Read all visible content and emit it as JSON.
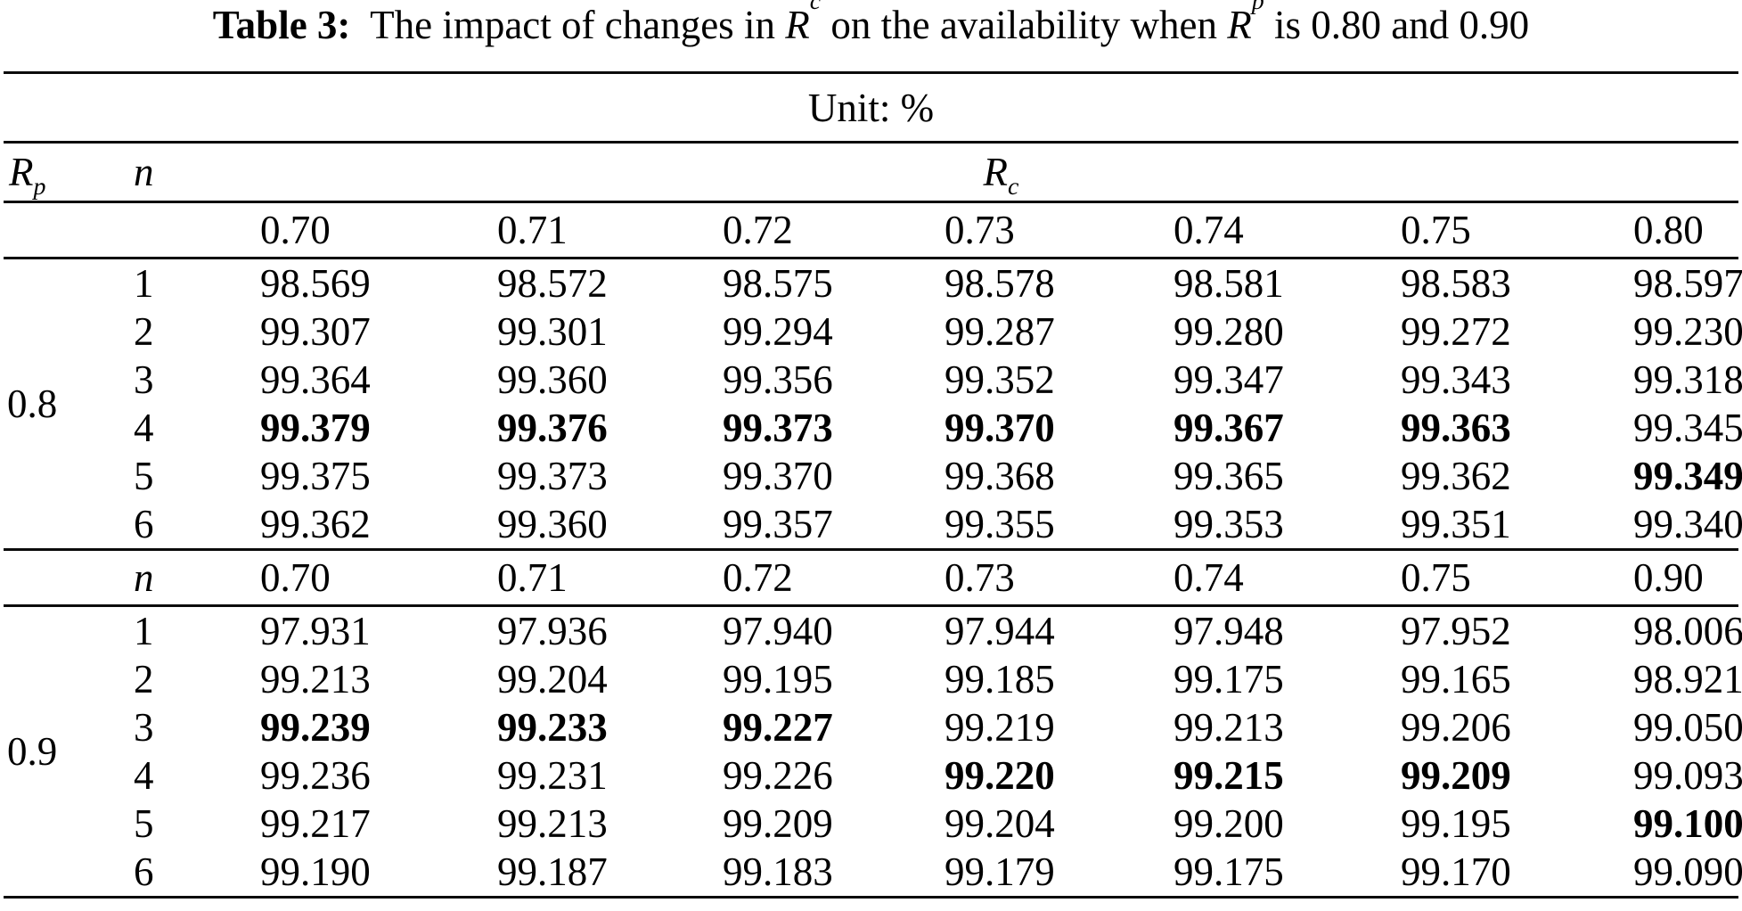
{
  "colors": {
    "text": "#000000",
    "background": "#ffffff"
  },
  "title": {
    "label": "Table 3:",
    "part1": "  The impact of changes in ",
    "r1_base": "R",
    "r1_sub": "c",
    "part2": " on the availability when ",
    "r2_base": "R",
    "r2_sub": "p",
    "part3": " is 0.80 and 0.90"
  },
  "unit_label": "Unit: %",
  "table": {
    "rp_header": {
      "base": "R",
      "sub": "p"
    },
    "n_header": "n",
    "n_header_mid": "n",
    "rc_header": {
      "base": "R",
      "sub": "c"
    },
    "col_headers_top": [
      "0.70",
      "0.71",
      "0.72",
      "0.73",
      "0.74",
      "0.75",
      "0.80"
    ],
    "col_headers_mid": [
      "0.70",
      "0.71",
      "0.72",
      "0.73",
      "0.74",
      "0.75",
      "0.90"
    ],
    "blocks": [
      {
        "rp": "0.8",
        "rows": [
          {
            "n": "1",
            "values": [
              "98.569",
              "98.572",
              "98.575",
              "98.578",
              "98.581",
              "98.583",
              "98.597"
            ]
          },
          {
            "n": "2",
            "values": [
              "99.307",
              "99.301",
              "99.294",
              "99.287",
              "99.280",
              "99.272",
              "99.230"
            ]
          },
          {
            "n": "3",
            "values": [
              "99.364",
              "99.360",
              "99.356",
              "99.352",
              "99.347",
              "99.343",
              "99.318"
            ]
          },
          {
            "n": "4",
            "values": [
              "99.379",
              "99.376",
              "99.373",
              "99.370",
              "99.367",
              "99.363",
              "99.345"
            ],
            "bold": [
              1,
              1,
              1,
              1,
              1,
              1,
              0
            ]
          },
          {
            "n": "5",
            "values": [
              "99.375",
              "99.373",
              "99.370",
              "99.368",
              "99.365",
              "99.362",
              "99.349"
            ],
            "bold": [
              0,
              0,
              0,
              0,
              0,
              0,
              1
            ]
          },
          {
            "n": "6",
            "values": [
              "99.362",
              "99.360",
              "99.357",
              "99.355",
              "99.353",
              "99.351",
              "99.340"
            ]
          }
        ]
      },
      {
        "rp": "0.9",
        "rows": [
          {
            "n": "1",
            "values": [
              "97.931",
              "97.936",
              "97.940",
              "97.944",
              "97.948",
              "97.952",
              "98.006"
            ]
          },
          {
            "n": "2",
            "values": [
              "99.213",
              "99.204",
              "99.195",
              "99.185",
              "99.175",
              "99.165",
              "98.921"
            ]
          },
          {
            "n": "3",
            "values": [
              "99.239",
              "99.233",
              "99.227",
              "99.219",
              "99.213",
              "99.206",
              "99.050"
            ],
            "bold": [
              1,
              1,
              1,
              0,
              0,
              0,
              0
            ]
          },
          {
            "n": "4",
            "values": [
              "99.236",
              "99.231",
              "99.226",
              "99.220",
              "99.215",
              "99.209",
              "99.093"
            ],
            "bold": [
              0,
              0,
              0,
              1,
              1,
              1,
              0
            ]
          },
          {
            "n": "5",
            "values": [
              "99.217",
              "99.213",
              "99.209",
              "99.204",
              "99.200",
              "99.195",
              "99.100"
            ],
            "bold": [
              0,
              0,
              0,
              0,
              0,
              0,
              1
            ]
          },
          {
            "n": "6",
            "values": [
              "99.190",
              "99.187",
              "99.183",
              "99.179",
              "99.175",
              "99.170",
              "99.090"
            ]
          }
        ]
      }
    ]
  }
}
